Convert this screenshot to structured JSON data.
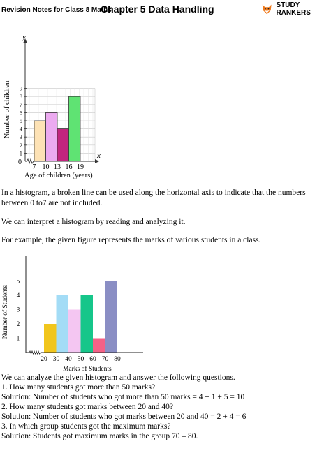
{
  "header": {
    "left_label": "Revision Notes for Class 8 Maths",
    "title": "Chapter 5 Data Handling",
    "brand": "STUDY RANKERS",
    "brand_icon": "fox-icon"
  },
  "paragraphs": {
    "histogram_broken_line_1": "In a histogram, a broken line can be used along the horizontal axis to indicate that the numbers",
    "histogram_broken_line_2": "between 0 to7 are not included.",
    "interpret": "We can interpret a histogram by reading and analyzing it.",
    "example": "For example, the given figure represents the marks of various students in a class."
  },
  "qa": [
    "We can analyze the given histogram and answer the following questions.",
    "1. How many students got more than 50 marks?",
    "Solution: Number of students who got more than 50 marks = 4 + 1 + 5 = 10",
    "2. How many students got marks between 20 and 40?",
    "Solution: Number of students who got marks between 20 and 40 = 2 + 4 = 6",
    "3. In which group students got the maximum marks?",
    "Solution: Students got maximum marks in the group 70 – 80."
  ],
  "chart_data": [
    {
      "type": "bar",
      "x_ticks": [
        "7",
        "10",
        "13",
        "16",
        "19"
      ],
      "categories": [
        "7-10",
        "10-13",
        "13-16",
        "16-19"
      ],
      "values": [
        5,
        6,
        4,
        8
      ],
      "colors": [
        "#fde2b5",
        "#ecaaf0",
        "#c2257e",
        "#5fe373"
      ],
      "xlabel": "Age of children (years)",
      "ylabel": "Number of children",
      "x_axis_name": "x",
      "y_axis_name": "y",
      "origin_label": "0",
      "ylim": [
        0,
        9
      ],
      "y_ticks": [
        1,
        2,
        3,
        4,
        5,
        6,
        7,
        8,
        9
      ],
      "grid": true,
      "broken_x_axis": true
    },
    {
      "type": "bar",
      "x_ticks": [
        "20",
        "30",
        "40",
        "50",
        "60",
        "70",
        "80"
      ],
      "categories": [
        "20-30",
        "30-40",
        "40-50",
        "50-60",
        "60-70",
        "70-80"
      ],
      "values": [
        2,
        4,
        3,
        4,
        1,
        5
      ],
      "colors": [
        "#f1c61d",
        "#a3dcf6",
        "#f4c6f2",
        "#16c68a",
        "#f46187",
        "#8a8ec4"
      ],
      "xlabel": "Marks of Students",
      "ylabel": "Number of Students",
      "ylim": [
        0,
        6
      ],
      "y_ticks": [
        1,
        2,
        3,
        4,
        5
      ],
      "grid": false,
      "broken_x_axis": true
    }
  ]
}
